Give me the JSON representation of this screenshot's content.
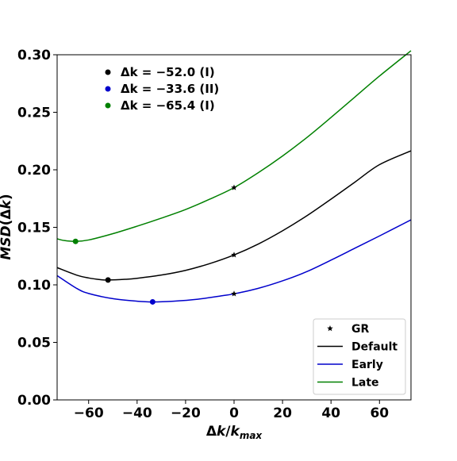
{
  "chart_data": {
    "type": "line",
    "title": "",
    "xlabel": "Δk/k_max",
    "ylabel": "MSD(Δk)",
    "xlim": [
      -73,
      73
    ],
    "ylim": [
      0.0,
      0.3
    ],
    "xticks": [
      -60,
      -40,
      -20,
      0,
      20,
      40,
      60
    ],
    "xtick_labels": [
      "−60",
      "−40",
      "−20",
      "0",
      "20",
      "40",
      "60"
    ],
    "yticks": [
      0.0,
      0.05,
      0.1,
      0.15,
      0.2,
      0.25,
      0.3
    ],
    "ytick_labels": [
      "0.00",
      "0.05",
      "0.10",
      "0.15",
      "0.20",
      "0.25",
      "0.30"
    ],
    "grid": false,
    "legend_placement": "lower right",
    "legend": [
      {
        "label": "GR",
        "marker": "star",
        "color": "#000000"
      },
      {
        "label": "Default",
        "marker": "line",
        "color": "#000000"
      },
      {
        "label": "Early",
        "marker": "line",
        "color": "#0000cc"
      },
      {
        "label": "Late",
        "marker": "line",
        "color": "#008000"
      }
    ],
    "series": [
      {
        "name": "Default",
        "color": "#000000",
        "x": [
          -73,
          -65,
          -60,
          -55,
          -52,
          -45,
          -40,
          -30,
          -20,
          -10,
          0,
          10,
          20,
          30,
          40,
          50,
          60,
          73
        ],
        "y": [
          0.115,
          0.1085,
          0.106,
          0.1045,
          0.1042,
          0.1048,
          0.1057,
          0.1085,
          0.1126,
          0.1185,
          0.126,
          0.1355,
          0.147,
          0.16,
          0.1745,
          0.1895,
          0.2045,
          0.2165
        ]
      },
      {
        "name": "Early",
        "color": "#0000cc",
        "x": [
          -73,
          -65,
          -60,
          -50,
          -40,
          -33.6,
          -25,
          -15,
          -5,
          0,
          10,
          20,
          30,
          40,
          50,
          60,
          73
        ],
        "y": [
          0.108,
          0.097,
          0.0925,
          0.088,
          0.0858,
          0.0852,
          0.0858,
          0.0875,
          0.0905,
          0.0922,
          0.097,
          0.1035,
          0.1115,
          0.1215,
          0.132,
          0.1425,
          0.1565
        ]
      },
      {
        "name": "Late",
        "color": "#008000",
        "x": [
          -73,
          -70,
          -65.4,
          -60,
          -50,
          -40,
          -30,
          -20,
          -10,
          0,
          10,
          20,
          30,
          40,
          50,
          60,
          73
        ],
        "y": [
          0.14,
          0.1385,
          0.1378,
          0.139,
          0.1445,
          0.151,
          0.158,
          0.1655,
          0.1745,
          0.1845,
          0.1975,
          0.212,
          0.228,
          0.2455,
          0.2635,
          0.2815,
          0.3035
        ]
      }
    ],
    "gr_markers": [
      {
        "x": 0,
        "y": 0.1845
      },
      {
        "x": 0,
        "y": 0.126
      },
      {
        "x": 0,
        "y": 0.0922
      }
    ],
    "minima": [
      {
        "x": -52.0,
        "y": 0.1042,
        "color": "#000000",
        "label": "Δk = −52.0  (I)"
      },
      {
        "x": -33.6,
        "y": 0.0852,
        "color": "#0000cc",
        "label": "Δk = −33.6  (II)"
      },
      {
        "x": -65.4,
        "y": 0.1378,
        "color": "#008000",
        "label": "Δk = −65.4  (I)"
      }
    ]
  }
}
